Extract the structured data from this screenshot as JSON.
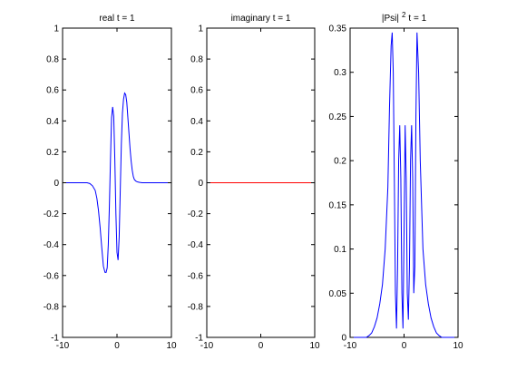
{
  "figure": {
    "background": "#ffffff",
    "axis_color": "#000000"
  },
  "chart_data": [
    {
      "type": "line",
      "title": "real t = 1",
      "title_sup": "",
      "xlim": [
        -10,
        10
      ],
      "ylim": [
        -1,
        1
      ],
      "xticks": [
        -10,
        0,
        10
      ],
      "yticks": [
        -1,
        -0.8,
        -0.6,
        -0.4,
        -0.2,
        0,
        0.2,
        0.4,
        0.6,
        0.8,
        1
      ],
      "grid": false,
      "legend": "none",
      "series": [
        {
          "color": "#0000ff",
          "x": [
            -10,
            -5.5,
            -5,
            -4.5,
            -4,
            -3.7,
            -3.4,
            -3.1,
            -2.8,
            -2.5,
            -2.2,
            -2,
            -1.8,
            -1.6,
            -1.4,
            -1.2,
            -1,
            -0.8,
            -0.6,
            -0.4,
            -0.2,
            0,
            0.2,
            0.4,
            0.6,
            0.8,
            1,
            1.2,
            1.4,
            1.6,
            1.8,
            2,
            2.2,
            2.4,
            2.6,
            2.8,
            3,
            3.2,
            3.5,
            3.8,
            4.2,
            4.6,
            5,
            10
          ],
          "y": [
            0,
            0,
            -0.005,
            -0.02,
            -0.05,
            -0.1,
            -0.18,
            -0.29,
            -0.42,
            -0.54,
            -0.58,
            -0.58,
            -0.55,
            -0.4,
            -0.15,
            0.15,
            0.42,
            0.49,
            0.43,
            0.15,
            -0.2,
            -0.45,
            -0.5,
            -0.35,
            -0.05,
            0.25,
            0.45,
            0.54,
            0.58,
            0.57,
            0.52,
            0.42,
            0.32,
            0.22,
            0.14,
            0.08,
            0.04,
            0.02,
            0.01,
            0.005,
            0.002,
            0,
            0,
            0
          ]
        }
      ]
    },
    {
      "type": "line",
      "title": "imaginary t = 1",
      "title_sup": "",
      "xlim": [
        -10,
        10
      ],
      "ylim": [
        -1,
        1
      ],
      "xticks": [
        -10,
        0,
        10
      ],
      "yticks": [
        -1,
        -0.8,
        -0.6,
        -0.4,
        -0.2,
        0,
        0.2,
        0.4,
        0.6,
        0.8,
        1
      ],
      "grid": false,
      "legend": "none",
      "series": [
        {
          "color": "#ff0000",
          "x": [
            -10,
            10
          ],
          "y": [
            0,
            0
          ]
        }
      ]
    },
    {
      "type": "line",
      "title": "|Psi|",
      "title_sup": "2",
      "title_suffix": "t = 1",
      "xlim": [
        -10,
        10
      ],
      "ylim": [
        0,
        0.35
      ],
      "xticks": [
        -10,
        0,
        10
      ],
      "yticks": [
        0,
        0.05,
        0.1,
        0.15,
        0.2,
        0.25,
        0.3,
        0.35
      ],
      "grid": false,
      "legend": "none",
      "series": [
        {
          "color": "#0000ff",
          "x": [
            -10,
            -7,
            -6.5,
            -6,
            -5.5,
            -5,
            -4.5,
            -4,
            -3.5,
            -3,
            -2.7,
            -2.4,
            -2.2,
            -2,
            -1.8,
            -1.6,
            -1.4,
            -1.2,
            -1,
            -0.8,
            -0.6,
            -0.4,
            -0.2,
            0,
            0.2,
            0.4,
            0.6,
            0.8,
            1,
            1.2,
            1.4,
            1.6,
            1.8,
            2,
            2.2,
            2.4,
            2.7,
            3,
            3.5,
            4,
            4.5,
            5,
            5.5,
            6,
            6.5,
            7,
            10
          ],
          "y": [
            0,
            0,
            0.002,
            0.005,
            0.012,
            0.022,
            0.038,
            0.06,
            0.1,
            0.17,
            0.26,
            0.33,
            0.345,
            0.3,
            0.18,
            0.05,
            0.01,
            0.08,
            0.2,
            0.24,
            0.18,
            0.05,
            0.01,
            0.12,
            0.24,
            0.18,
            0.05,
            0.02,
            0.08,
            0.2,
            0.24,
            0.18,
            0.05,
            0.08,
            0.25,
            0.345,
            0.3,
            0.2,
            0.1,
            0.06,
            0.038,
            0.022,
            0.012,
            0.005,
            0.002,
            0,
            0
          ]
        }
      ]
    }
  ]
}
